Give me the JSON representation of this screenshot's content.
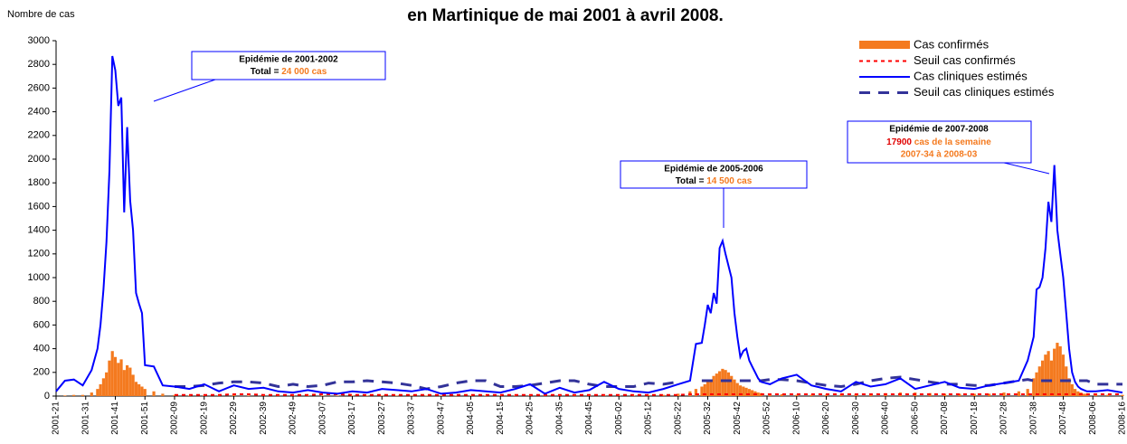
{
  "chart_data": {
    "type": "line",
    "title": "en Martinique de mai 2001 à avril 2008.",
    "y_label": "Nombre de cas",
    "xlim": [
      0,
      360
    ],
    "ylim": [
      0,
      3000
    ],
    "yticks": [
      0,
      200,
      400,
      600,
      800,
      1000,
      1200,
      1400,
      1600,
      1800,
      2000,
      2200,
      2400,
      2600,
      2800,
      3000
    ],
    "xticks": [
      {
        "value": 0,
        "label": "2001-21"
      },
      {
        "value": 10,
        "label": "2001-31"
      },
      {
        "value": 20,
        "label": "2001-41"
      },
      {
        "value": 30,
        "label": "2001-51"
      },
      {
        "value": 40,
        "label": "2002-09"
      },
      {
        "value": 50,
        "label": "2002-19"
      },
      {
        "value": 60,
        "label": "2002-29"
      },
      {
        "value": 70,
        "label": "2002-39"
      },
      {
        "value": 80,
        "label": "2002-49"
      },
      {
        "value": 90,
        "label": "2003-07"
      },
      {
        "value": 100,
        "label": "2003-17"
      },
      {
        "value": 110,
        "label": "2003-27"
      },
      {
        "value": 120,
        "label": "2003-37"
      },
      {
        "value": 130,
        "label": "2003-47"
      },
      {
        "value": 140,
        "label": "2004-05"
      },
      {
        "value": 150,
        "label": "2004-15"
      },
      {
        "value": 160,
        "label": "2004-25"
      },
      {
        "value": 170,
        "label": "2004-35"
      },
      {
        "value": 180,
        "label": "2004-45"
      },
      {
        "value": 190,
        "label": "2005-02"
      },
      {
        "value": 200,
        "label": "2005-12"
      },
      {
        "value": 210,
        "label": "2005-22"
      },
      {
        "value": 220,
        "label": "2005-32"
      },
      {
        "value": 230,
        "label": "2005-42"
      },
      {
        "value": 240,
        "label": "2005-52"
      },
      {
        "value": 250,
        "label": "2006-10"
      },
      {
        "value": 260,
        "label": "2006-20"
      },
      {
        "value": 270,
        "label": "2006-30"
      },
      {
        "value": 280,
        "label": "2006-40"
      },
      {
        "value": 290,
        "label": "2006-50"
      },
      {
        "value": 300,
        "label": "2007-08"
      },
      {
        "value": 310,
        "label": "2007-18"
      },
      {
        "value": 320,
        "label": "2007-28"
      },
      {
        "value": 330,
        "label": "2007-38"
      },
      {
        "value": 340,
        "label": "2007-48"
      },
      {
        "value": 350,
        "label": "2008-06"
      },
      {
        "value": 360,
        "label": "2008-16"
      }
    ],
    "x": [
      0,
      3,
      6,
      9,
      12,
      14,
      15,
      16,
      17,
      18,
      19,
      20,
      21,
      22,
      23,
      24,
      25,
      26,
      27,
      28,
      29,
      30,
      33,
      36,
      40,
      45,
      50,
      55,
      60,
      65,
      70,
      75,
      80,
      85,
      90,
      95,
      100,
      105,
      110,
      115,
      120,
      125,
      130,
      135,
      140,
      145,
      150,
      155,
      160,
      165,
      170,
      175,
      180,
      185,
      190,
      195,
      200,
      205,
      210,
      214,
      216,
      218,
      219,
      220,
      221,
      222,
      223,
      224,
      225,
      226,
      227,
      228,
      229,
      230,
      231,
      232,
      233,
      234,
      235,
      236,
      237,
      238,
      241,
      245,
      250,
      255,
      260,
      265,
      270,
      275,
      280,
      285,
      290,
      295,
      300,
      305,
      310,
      315,
      320,
      325,
      328,
      330,
      331,
      332,
      333,
      334,
      335,
      336,
      337,
      338,
      339,
      340,
      341,
      342,
      343,
      344,
      345,
      346,
      347,
      348,
      351,
      355,
      360
    ],
    "series": [
      {
        "name": "Cas confirmés",
        "kind": "bar",
        "color": "#f47a1f",
        "values": [
          0,
          5,
          10,
          10,
          30,
          60,
          100,
          150,
          200,
          300,
          380,
          330,
          280,
          310,
          220,
          260,
          240,
          180,
          120,
          100,
          80,
          60,
          40,
          20,
          10,
          5,
          5,
          5,
          10,
          5,
          5,
          5,
          5,
          5,
          5,
          5,
          5,
          5,
          5,
          5,
          5,
          5,
          5,
          5,
          5,
          5,
          5,
          5,
          5,
          5,
          5,
          5,
          5,
          5,
          5,
          5,
          10,
          10,
          20,
          40,
          60,
          80,
          100,
          120,
          140,
          170,
          190,
          210,
          230,
          220,
          200,
          170,
          140,
          110,
          90,
          80,
          70,
          60,
          50,
          40,
          30,
          25,
          20,
          15,
          10,
          10,
          10,
          10,
          15,
          20,
          25,
          30,
          30,
          25,
          20,
          20,
          20,
          20,
          30,
          40,
          60,
          150,
          200,
          250,
          300,
          350,
          380,
          300,
          400,
          450,
          420,
          350,
          250,
          150,
          100,
          60,
          40,
          30,
          20,
          20,
          20,
          10,
          10
        ]
      },
      {
        "name": "Seuil cas confirmés",
        "kind": "dash-small",
        "color": "#ff0000",
        "values": [
          null,
          null,
          null,
          null,
          null,
          null,
          null,
          null,
          null,
          null,
          null,
          null,
          null,
          null,
          null,
          null,
          null,
          null,
          null,
          null,
          null,
          null,
          null,
          null,
          10,
          10,
          10,
          10,
          15,
          15,
          10,
          10,
          10,
          10,
          15,
          15,
          10,
          10,
          10,
          10,
          10,
          10,
          10,
          10,
          10,
          10,
          10,
          10,
          10,
          10,
          10,
          10,
          10,
          10,
          10,
          10,
          10,
          10,
          10,
          15,
          15,
          15,
          15,
          15,
          15,
          15,
          15,
          15,
          15,
          15,
          15,
          15,
          15,
          15,
          15,
          15,
          15,
          15,
          15,
          15,
          15,
          15,
          15,
          15,
          15,
          15,
          15,
          15,
          15,
          15,
          15,
          15,
          15,
          15,
          15,
          15,
          15,
          15,
          15,
          15,
          15,
          15,
          15,
          15,
          15,
          15,
          15,
          15,
          15,
          15,
          15,
          15,
          15,
          15,
          15,
          15,
          15,
          15,
          15,
          15,
          15,
          15,
          15
        ]
      },
      {
        "name": "Cas cliniques estimés",
        "kind": "line",
        "color": "#0000ff",
        "values": [
          40,
          130,
          140,
          90,
          220,
          400,
          600,
          900,
          1300,
          1900,
          2870,
          2750,
          2450,
          2520,
          1550,
          2270,
          1650,
          1400,
          870,
          780,
          700,
          260,
          250,
          90,
          80,
          60,
          100,
          40,
          90,
          60,
          70,
          40,
          30,
          50,
          30,
          20,
          40,
          30,
          60,
          50,
          40,
          60,
          20,
          30,
          50,
          40,
          30,
          60,
          100,
          20,
          70,
          30,
          50,
          120,
          60,
          40,
          30,
          60,
          100,
          130,
          440,
          450,
          600,
          770,
          700,
          870,
          780,
          1250,
          1310,
          1200,
          1100,
          1000,
          700,
          500,
          330,
          380,
          400,
          300,
          250,
          200,
          150,
          120,
          100,
          150,
          180,
          90,
          60,
          40,
          120,
          80,
          100,
          150,
          60,
          90,
          120,
          70,
          60,
          90,
          110,
          130,
          300,
          500,
          900,
          920,
          1000,
          1250,
          1640,
          1470,
          1950,
          1400,
          1200,
          1000,
          700,
          400,
          200,
          120,
          80,
          60,
          50,
          40,
          40,
          50,
          30
        ]
      },
      {
        "name": "Seuil cas cliniques estimés",
        "kind": "dash-large",
        "color": "#333399",
        "values": [
          null,
          null,
          null,
          null,
          null,
          null,
          null,
          null,
          null,
          null,
          null,
          null,
          null,
          null,
          null,
          null,
          null,
          null,
          null,
          null,
          null,
          null,
          null,
          null,
          80,
          80,
          90,
          110,
          120,
          120,
          110,
          80,
          100,
          80,
          90,
          120,
          120,
          130,
          120,
          110,
          90,
          60,
          80,
          110,
          130,
          130,
          80,
          80,
          90,
          110,
          130,
          130,
          100,
          80,
          80,
          80,
          110,
          100,
          120,
          null,
          null,
          130,
          130,
          130,
          130,
          130,
          130,
          130,
          130,
          130,
          130,
          130,
          130,
          130,
          130,
          130,
          130,
          130,
          130,
          130,
          130,
          130,
          140,
          140,
          130,
          110,
          90,
          80,
          100,
          130,
          150,
          160,
          140,
          120,
          100,
          100,
          90,
          90,
          110,
          130,
          140,
          130,
          130,
          130,
          130,
          130,
          130,
          130,
          130,
          130,
          130,
          130,
          130,
          130,
          130,
          130,
          130,
          130,
          130,
          130,
          100,
          100,
          100
        ]
      }
    ],
    "annotations": [
      {
        "title": "Epidémie de 2001-2002",
        "total_label": "Total =",
        "total": "24 000 cas"
      },
      {
        "title": "Epidémie de 2005-2006",
        "total_label": "Total =",
        "total": "14 500 cas"
      },
      {
        "title": "Epidémie de 2007-2008",
        "count": "17900",
        "count_text": "cas de la semaine",
        "period": "2007-34 à 2008-03"
      }
    ]
  }
}
